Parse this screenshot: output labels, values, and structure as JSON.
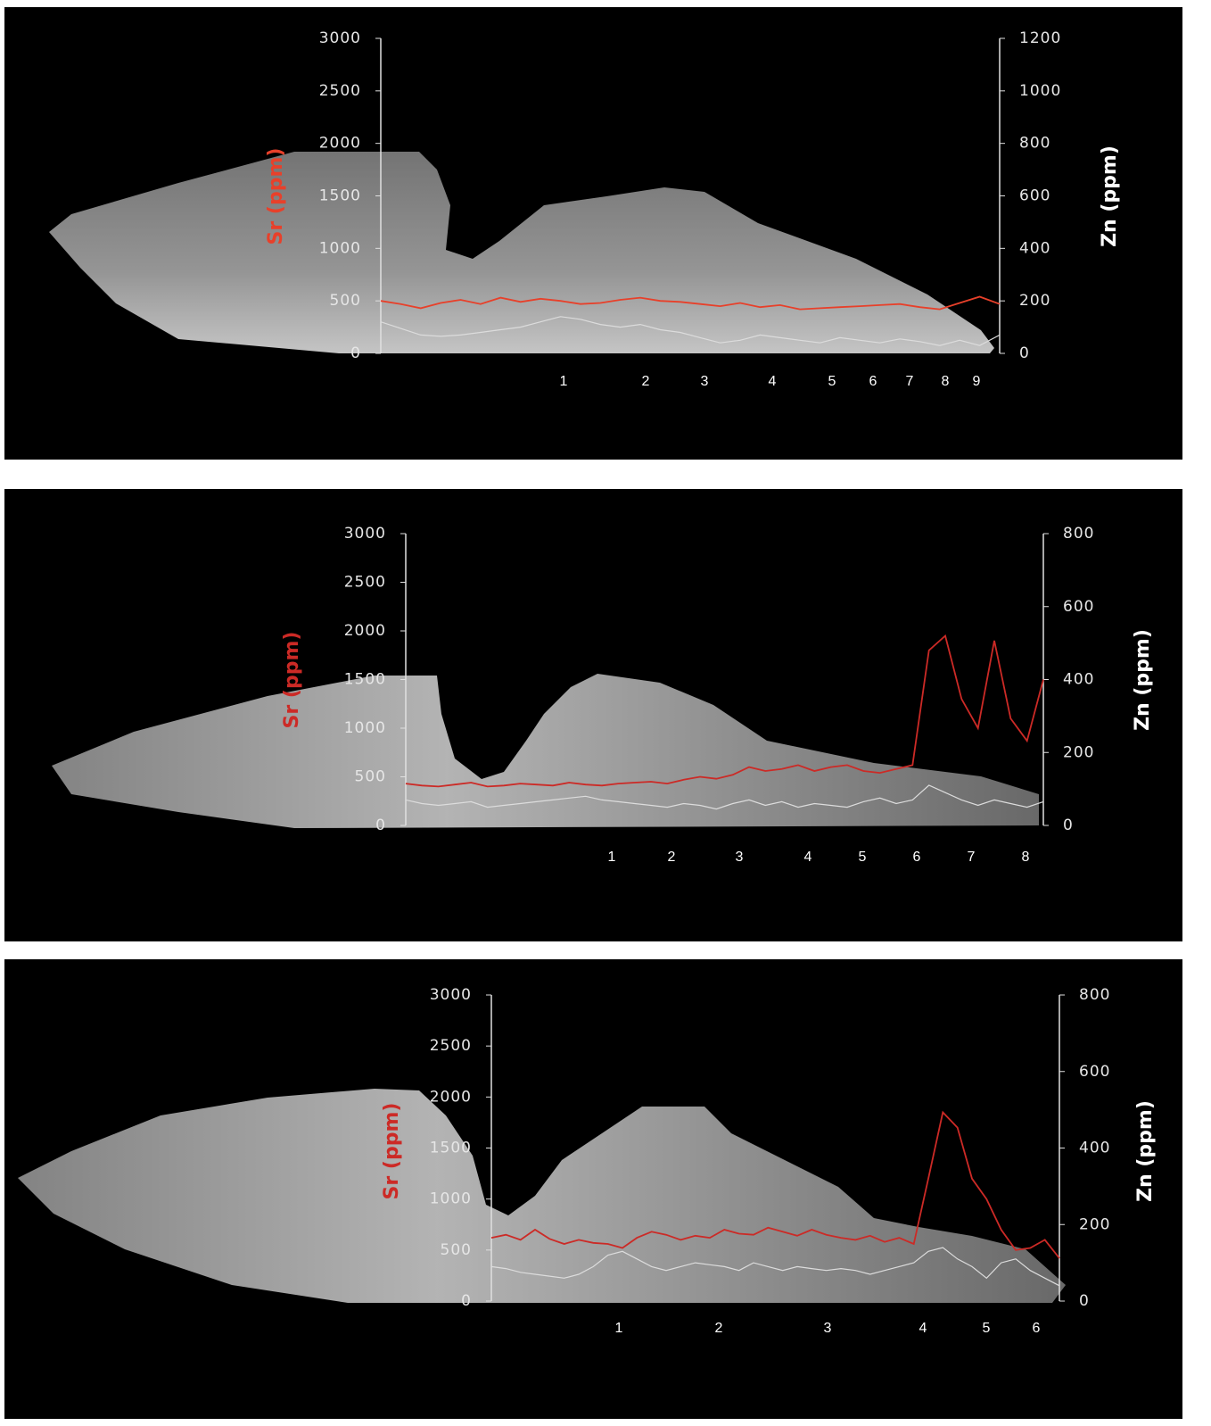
{
  "chart_data": [
    {
      "type": "line",
      "ylabel": "Sr (ppm)",
      "y2label": "Zn (ppm)",
      "ylim": [
        0,
        3000
      ],
      "yticks": [
        0,
        500,
        1000,
        1500,
        2000,
        2500,
        3000
      ],
      "y2lim": [
        0,
        1200
      ],
      "y2ticks": [
        0,
        200,
        400,
        600,
        800,
        1000,
        1200
      ],
      "annuli": [
        "1",
        "2",
        "3",
        "4",
        "5",
        "6",
        "7",
        "8",
        "9"
      ],
      "series": [
        {
          "color": "#e8402a",
          "values": [
            500,
            470,
            430,
            480,
            510,
            470,
            530,
            490,
            520,
            500,
            470,
            480,
            510,
            530,
            500,
            490,
            470,
            450,
            480,
            440,
            460,
            420,
            430,
            440,
            450,
            460,
            470,
            440,
            420,
            480,
            540,
            470
          ]
        },
        {
          "color": "#dcdcdc",
          "axis": "y2",
          "values": [
            120,
            95,
            70,
            65,
            70,
            80,
            90,
            100,
            120,
            140,
            130,
            110,
            100,
            110,
            90,
            80,
            60,
            40,
            50,
            70,
            60,
            50,
            40,
            60,
            50,
            40,
            55,
            45,
            30,
            50,
            30,
            70
          ]
        }
      ]
    },
    {
      "type": "line",
      "ylabel": "Sr (ppm)",
      "y2label": "Zn (ppm)",
      "ylim": [
        0,
        3000
      ],
      "yticks": [
        0,
        500,
        1000,
        1500,
        2000,
        2500,
        3000
      ],
      "y2lim": [
        0,
        800
      ],
      "y2ticks": [
        0,
        200,
        400,
        600,
        800
      ],
      "annuli": [
        "1",
        "2",
        "3",
        "4",
        "5",
        "6",
        "7",
        "8"
      ],
      "series": [
        {
          "color": "#cc2a26",
          "values": [
            430,
            410,
            400,
            420,
            440,
            400,
            410,
            430,
            420,
            410,
            440,
            420,
            410,
            430,
            440,
            450,
            430,
            470,
            500,
            480,
            520,
            600,
            560,
            580,
            620,
            560,
            600,
            620,
            560,
            540,
            580,
            620,
            1800,
            1950,
            1300,
            1000,
            1900,
            1100,
            870,
            1500
          ]
        },
        {
          "color": "#dcdcdc",
          "axis": "y2",
          "values": [
            70,
            60,
            55,
            60,
            65,
            50,
            55,
            60,
            65,
            70,
            75,
            80,
            70,
            65,
            60,
            55,
            50,
            60,
            55,
            45,
            60,
            70,
            55,
            65,
            50,
            60,
            55,
            50,
            65,
            75,
            60,
            70,
            110,
            90,
            70,
            55,
            70,
            60,
            50,
            65
          ]
        }
      ]
    },
    {
      "type": "line",
      "ylabel": "Sr (ppm)",
      "y2label": "Zn (ppm)",
      "ylim": [
        0,
        3000
      ],
      "yticks": [
        0,
        500,
        1000,
        1500,
        2000,
        2500,
        3000
      ],
      "y2lim": [
        0,
        800
      ],
      "y2ticks": [
        0,
        200,
        400,
        600,
        800
      ],
      "annuli": [
        "1",
        "2",
        "3",
        "4",
        "5",
        "6"
      ],
      "series": [
        {
          "color": "#cc2a26",
          "values": [
            620,
            650,
            600,
            700,
            610,
            560,
            600,
            570,
            560,
            520,
            620,
            680,
            650,
            600,
            640,
            620,
            700,
            660,
            650,
            720,
            680,
            640,
            700,
            650,
            620,
            600,
            640,
            580,
            620,
            560,
            1200,
            1850,
            1700,
            1200,
            1000,
            700,
            500,
            520,
            600,
            420
          ]
        },
        {
          "color": "#dcdcdc",
          "axis": "y2",
          "values": [
            90,
            85,
            75,
            70,
            65,
            60,
            70,
            90,
            120,
            130,
            110,
            90,
            80,
            90,
            100,
            95,
            90,
            80,
            100,
            90,
            80,
            90,
            85,
            80,
            85,
            80,
            70,
            80,
            90,
            100,
            130,
            140,
            110,
            90,
            60,
            100,
            110,
            80,
            60,
            40
          ]
        }
      ]
    }
  ]
}
